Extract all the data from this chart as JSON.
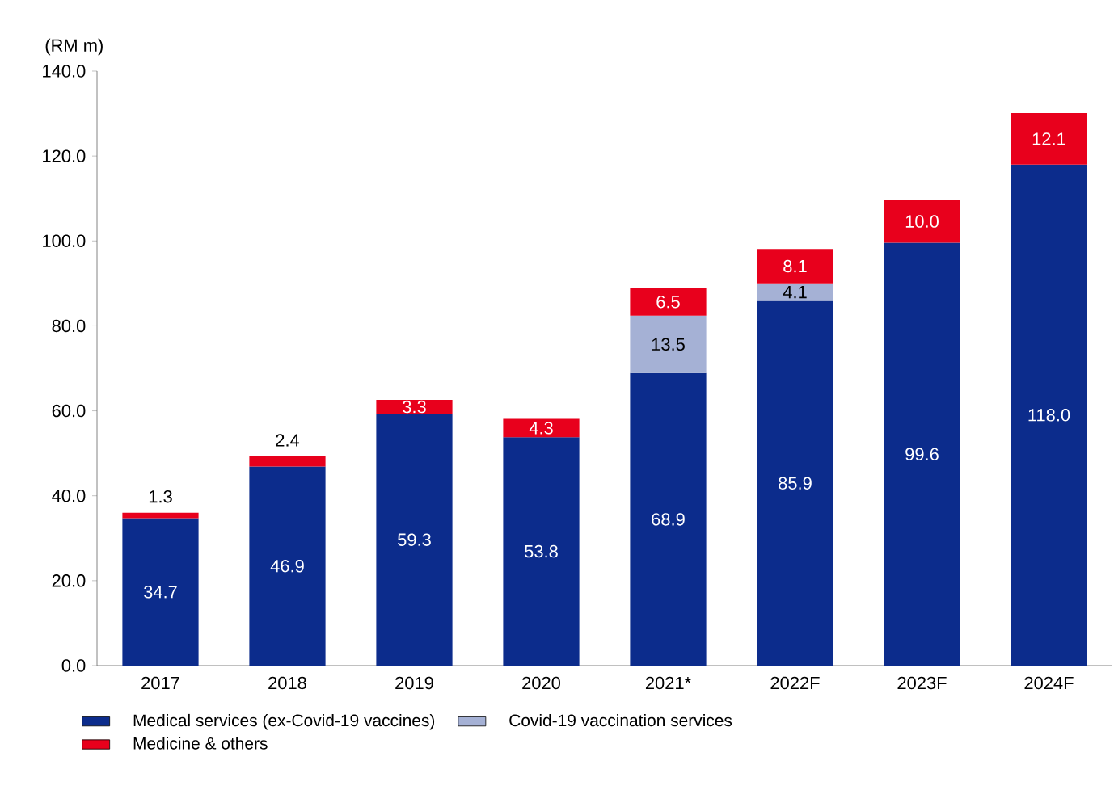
{
  "chart_data": {
    "type": "bar",
    "stacked": true,
    "ylabel": "(RM m)",
    "categories": [
      "2017",
      "2018",
      "2019",
      "2020",
      "2021*",
      "2022F",
      "2023F",
      "2024F"
    ],
    "series": [
      {
        "name": "Medical services (ex-Covid-19 vaccines)",
        "color": "#0c2c8c",
        "values": [
          34.7,
          46.9,
          59.3,
          53.8,
          68.9,
          85.9,
          99.6,
          118.0
        ],
        "value_labels": [
          "34.7",
          "46.9",
          "59.3",
          "53.8",
          "68.9",
          "85.9",
          "99.6",
          "118.0"
        ]
      },
      {
        "name": "Covid-19 vaccination services",
        "color": "#a5b1d5",
        "values": [
          null,
          null,
          null,
          null,
          13.5,
          4.1,
          null,
          null
        ],
        "value_labels": [
          null,
          null,
          null,
          null,
          "13.5",
          "4.1",
          null,
          null
        ]
      },
      {
        "name": "Medicine & others",
        "color": "#e8001c",
        "values": [
          1.3,
          2.4,
          3.3,
          4.3,
          6.5,
          8.1,
          10.0,
          12.1
        ],
        "value_labels": [
          "1.3",
          "2.4",
          "3.3",
          "4.3",
          "6.5",
          "8.1",
          "10.0",
          "12.1"
        ]
      }
    ],
    "ylim": [
      0,
      140
    ],
    "yticks": [
      {
        "value": 0,
        "label": "0.0"
      },
      {
        "value": 20,
        "label": "20.0"
      },
      {
        "value": 40,
        "label": "40.0"
      },
      {
        "value": 60,
        "label": "60.0"
      },
      {
        "value": 80,
        "label": "80.0"
      },
      {
        "value": 100,
        "label": "100.0"
      },
      {
        "value": 120,
        "label": "120.0"
      },
      {
        "value": 140,
        "label": "140.0"
      }
    ],
    "grid": false,
    "legend": "bottom"
  }
}
